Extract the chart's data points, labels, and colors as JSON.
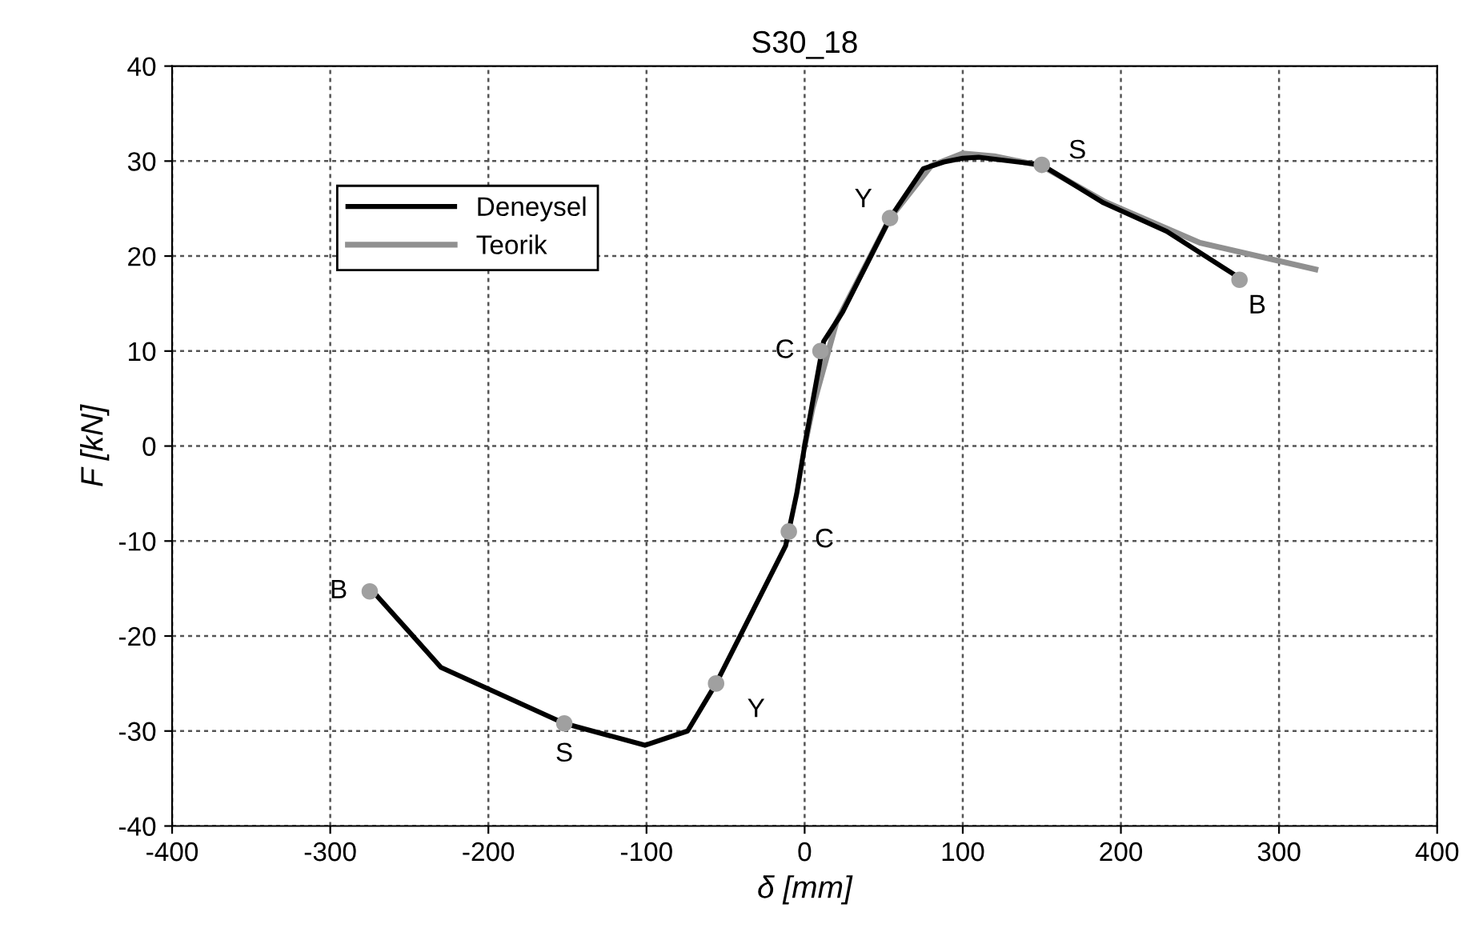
{
  "chart_data": {
    "type": "line",
    "title": "S30_18",
    "xlabel": "δ [mm]",
    "ylabel": "F [kN]",
    "series": [
      {
        "name": "Deneysel",
        "color": "#000000",
        "x": [
          -273,
          -230,
          -152,
          -101,
          -74,
          -56,
          -12,
          -5,
          0,
          12,
          24,
          54,
          75,
          88,
          100,
          110,
          150,
          189,
          229,
          275
        ],
        "values": [
          -15.3,
          -23.3,
          -29.2,
          -31.5,
          -30,
          -25,
          -10.5,
          -5,
          0,
          11,
          14.1,
          24,
          29.2,
          29.9,
          30.3,
          30.4,
          29.6,
          25.6,
          22.6,
          17.7
        ]
      },
      {
        "name": "Teorik",
        "color": "#909090",
        "x": [
          0,
          5,
          20,
          54,
          80,
          100,
          120,
          150,
          190,
          250,
          323
        ],
        "values": [
          0,
          4,
          13,
          24,
          29.5,
          30.8,
          30.5,
          29.5,
          25.7,
          21.4,
          18.6
        ]
      },
      {
        "type": "scatter",
        "color": "#a0a0a0",
        "marker": "circle",
        "x": [
          -275,
          -152,
          -56,
          -10,
          10,
          54,
          150,
          275
        ],
        "values": [
          -15.3,
          -29.2,
          -25,
          -9,
          10,
          24,
          29.6,
          17.5
        ]
      }
    ],
    "annotations": [
      {
        "text": "B",
        "x": -275,
        "y": -15.3
      },
      {
        "text": "S",
        "x": -152,
        "y": -29.2
      },
      {
        "text": "Y",
        "x": -56,
        "y": -25
      },
      {
        "text": "C",
        "x": -10,
        "y": -9
      },
      {
        "text": "C",
        "x": 10,
        "y": 10
      },
      {
        "text": "Y",
        "x": 54,
        "y": 24
      },
      {
        "text": "S",
        "x": 150,
        "y": 29.6
      },
      {
        "text": "B",
        "x": 275,
        "y": 17.5
      }
    ],
    "xlim": [
      -400,
      400
    ],
    "xticks": [
      -400,
      -300,
      -200,
      -100,
      0,
      100,
      200,
      300,
      400
    ],
    "ylim": [
      -40,
      40
    ],
    "yticks": [
      -40,
      -30,
      -20,
      -10,
      0,
      10,
      20,
      30,
      40
    ],
    "grid": true,
    "legend": "top left",
    "line_style": "solid"
  }
}
